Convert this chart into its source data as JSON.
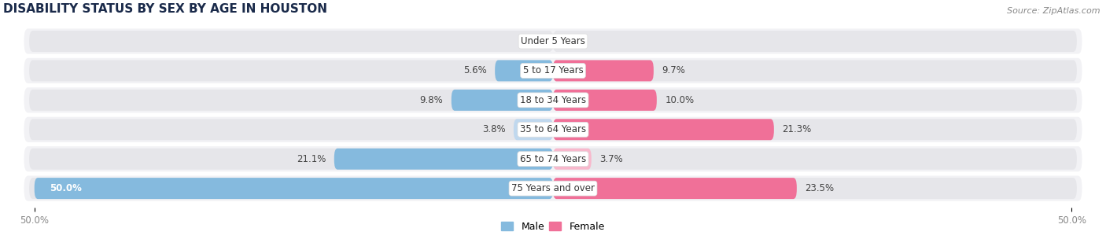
{
  "title": "DISABILITY STATUS BY SEX BY AGE IN HOUSTON",
  "source": "Source: ZipAtlas.com",
  "categories": [
    "Under 5 Years",
    "5 to 17 Years",
    "18 to 34 Years",
    "35 to 64 Years",
    "65 to 74 Years",
    "75 Years and over"
  ],
  "male_values": [
    0.0,
    5.6,
    9.8,
    3.8,
    21.1,
    50.0
  ],
  "female_values": [
    0.0,
    9.7,
    10.0,
    21.3,
    3.7,
    23.5
  ],
  "male_color": "#85BADE",
  "female_color": "#F07098",
  "male_color_light": "#C0D8EE",
  "female_color_light": "#F8B8CC",
  "bar_bg_color": "#E6E6EA",
  "row_bg_color": "#F2F2F5",
  "male_color_legend": "#85BADE",
  "female_color_legend": "#F07098",
  "axis_limit": 50.0,
  "title_fontsize": 11,
  "label_fontsize": 8.5,
  "tick_fontsize": 8.5,
  "source_fontsize": 8,
  "bar_height": 0.72,
  "background_color": "#ffffff",
  "title_color": "#1a2a4a"
}
